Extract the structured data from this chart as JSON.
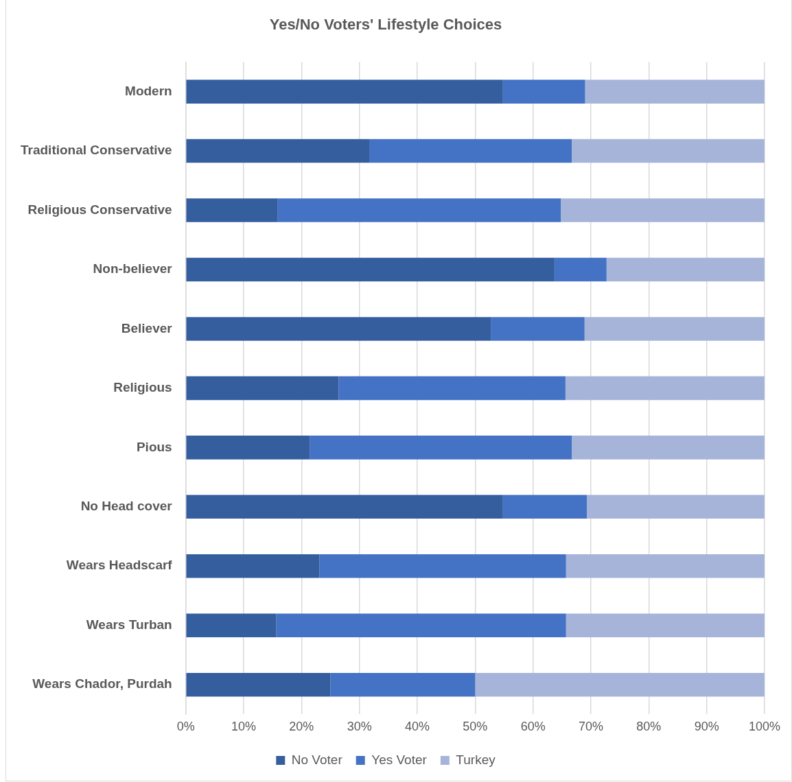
{
  "chart_data": {
    "type": "bar",
    "orientation": "horizontal",
    "stacked": true,
    "title": "Yes/No Voters' Lifestyle Choices",
    "categories": [
      "Modern",
      "Traditional Conservative",
      "Religious Conservative",
      "Non-believer",
      "Believer",
      "Religious",
      "Pious",
      "No Head cover",
      "Wears Headscarf",
      "Wears Turban",
      "Wears Chador, Purdah"
    ],
    "series": [
      {
        "name": "No Voter",
        "color": "#355e9f",
        "values": [
          54.8,
          31.7,
          15.9,
          63.7,
          52.7,
          26.4,
          21.4,
          54.8,
          23.1,
          15.6,
          25.0
        ]
      },
      {
        "name": "Yes Voter",
        "color": "#4472c4",
        "values": [
          14.2,
          35.0,
          48.9,
          9.0,
          16.2,
          39.2,
          45.3,
          14.5,
          42.6,
          50.1,
          25.0
        ]
      },
      {
        "name": "Turkey",
        "color": "#a6b4da",
        "values": [
          31.0,
          33.3,
          35.2,
          27.3,
          31.1,
          34.4,
          33.3,
          30.7,
          34.3,
          34.3,
          50.0
        ]
      }
    ],
    "xlim": [
      0,
      100
    ],
    "xticks": [
      {
        "value": 0,
        "label": "0%"
      },
      {
        "value": 10,
        "label": "10%"
      },
      {
        "value": 20,
        "label": "20%"
      },
      {
        "value": 30,
        "label": "30%"
      },
      {
        "value": 40,
        "label": "40%"
      },
      {
        "value": 50,
        "label": "50%"
      },
      {
        "value": 60,
        "label": "60%"
      },
      {
        "value": 70,
        "label": "70%"
      },
      {
        "value": 80,
        "label": "80%"
      },
      {
        "value": 90,
        "label": "90%"
      },
      {
        "value": 100,
        "label": "100%"
      }
    ],
    "grid": "x",
    "legend": "bottom"
  }
}
